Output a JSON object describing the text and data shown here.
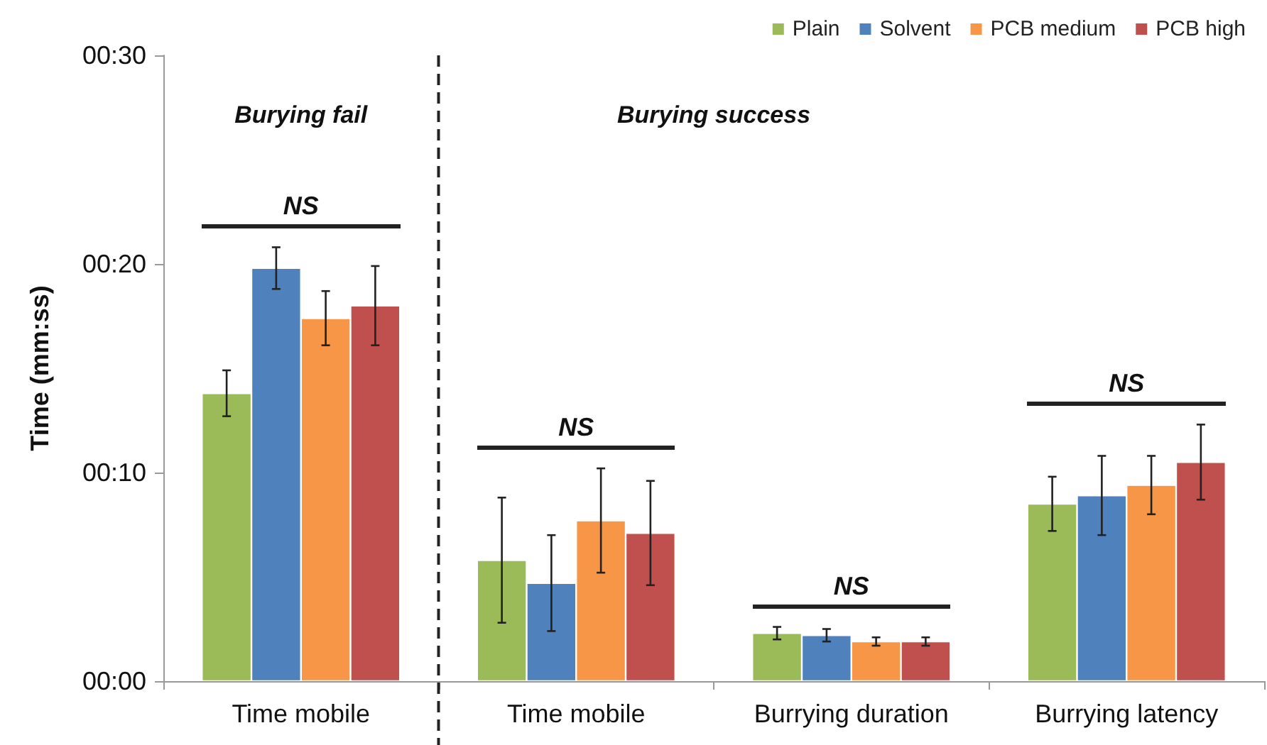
{
  "chart_data": {
    "type": "bar",
    "categories": [
      "Time mobile",
      "Time mobile",
      "Burrying duration",
      "Burrying latency"
    ],
    "ylabel": "Time (mm:ss)",
    "ylim": [
      0,
      30
    ],
    "yticks": [
      {
        "value": 0,
        "label": "00:00"
      },
      {
        "value": 10,
        "label": "00:10"
      },
      {
        "value": 20,
        "label": "00:20"
      },
      {
        "value": 30,
        "label": "00:30"
      }
    ],
    "grid": false,
    "legend": "top right",
    "series": [
      {
        "name": "Plain",
        "color": "#9bbb59",
        "values": [
          13.8,
          5.8,
          2.3,
          8.5
        ],
        "errors": [
          1.1,
          3.0,
          0.3,
          1.3
        ]
      },
      {
        "name": "Solvent",
        "color": "#4f81bd",
        "values": [
          19.8,
          4.7,
          2.2,
          8.9
        ],
        "errors": [
          1.0,
          2.3,
          0.3,
          1.9
        ]
      },
      {
        "name": "PCB medium",
        "color": "#f79646",
        "values": [
          17.4,
          7.7,
          1.9,
          9.4
        ],
        "errors": [
          1.3,
          2.5,
          0.2,
          1.4
        ]
      },
      {
        "name": "PCB high",
        "color": "#c0504d",
        "values": [
          18.0,
          7.1,
          1.9,
          10.5
        ],
        "errors": [
          1.9,
          2.5,
          0.2,
          1.8
        ]
      }
    ],
    "annotations": [
      "Burying fail",
      "Burying success",
      "NS",
      "NS",
      "NS",
      "NS"
    ]
  }
}
